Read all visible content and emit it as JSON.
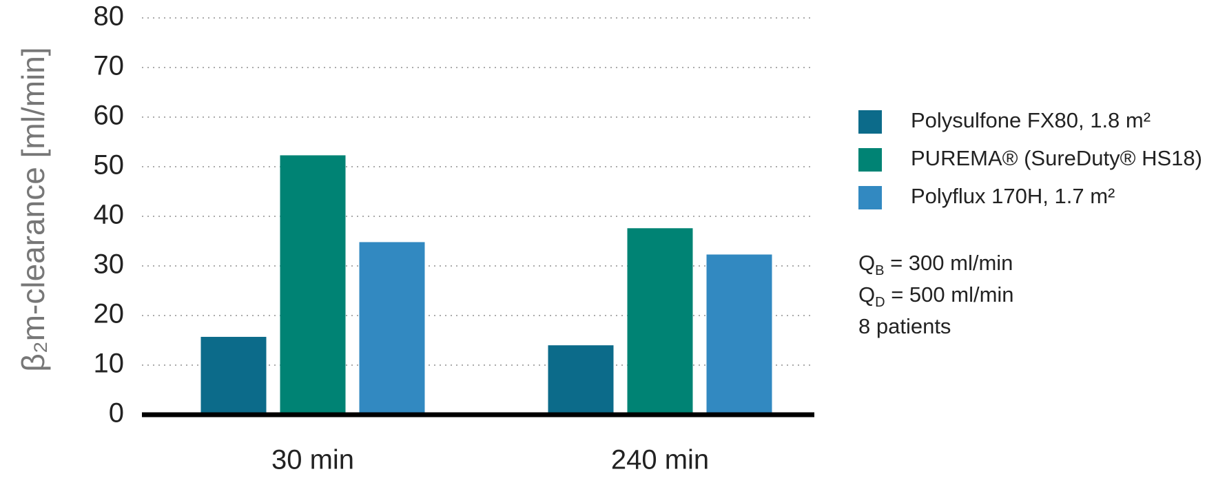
{
  "chart_data": {
    "type": "bar",
    "y_label": "β₂m-clearance [ml/min]",
    "categories": [
      "30 min",
      "240 min"
    ],
    "series": [
      {
        "name": "Polysulfone FX80, 1.8 m²",
        "color": "#0c6b8a",
        "values": [
          15.7,
          14.0
        ]
      },
      {
        "name": "PUREMA® (SureDuty® HS18)",
        "color": "#008374",
        "values": [
          52.3,
          37.6
        ]
      },
      {
        "name": "Polyflux 170H, 1.7 m²",
        "color": "#3289c1",
        "values": [
          34.8,
          32.3
        ]
      }
    ],
    "ylim": [
      0,
      80
    ],
    "yticks": [
      0,
      10,
      20,
      30,
      40,
      50,
      60,
      70,
      80
    ],
    "grid": true,
    "legend": "right",
    "notes": [
      {
        "symbol": "Q",
        "subscript": "B",
        "text": " = 300 ml/min"
      },
      {
        "symbol": "Q",
        "subscript": "D",
        "text": " = 500 ml/min"
      },
      {
        "text": "8 patients"
      }
    ]
  }
}
